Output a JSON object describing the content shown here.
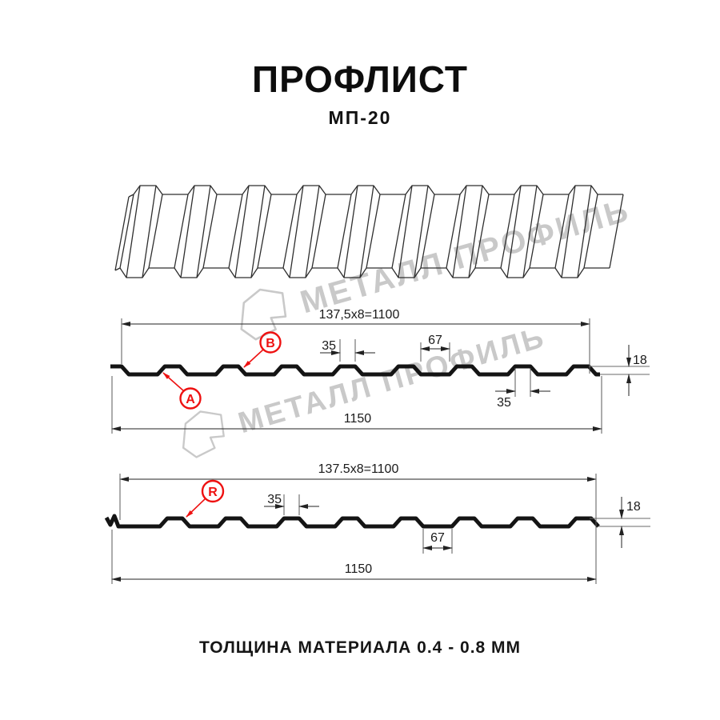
{
  "title": "ПРОФЛИСТ",
  "subtitle": "МП-20",
  "footer": "ТОЛЩИНА МАТЕРИАЛА 0.4 - 0.8 ММ",
  "watermark": {
    "brand": "МЕТАЛЛ ПРОФИЛЬ"
  },
  "colors": {
    "accent_red": "#ee1111",
    "line": "#141414",
    "watermark_gray": "#c9c9c9"
  },
  "section_top": {
    "width_total": "137,5x8=1100",
    "rib_width_top": "35",
    "valley_width": "67",
    "height": "18",
    "rib_width_bottom": "35",
    "overall_width": "1150",
    "label_a": "A",
    "label_b": "B"
  },
  "section_bottom": {
    "width_total": "137.5x8=1100",
    "rib_width": "35",
    "height": "18",
    "valley_width": "67",
    "overall_width": "1150",
    "label_r": "R"
  }
}
